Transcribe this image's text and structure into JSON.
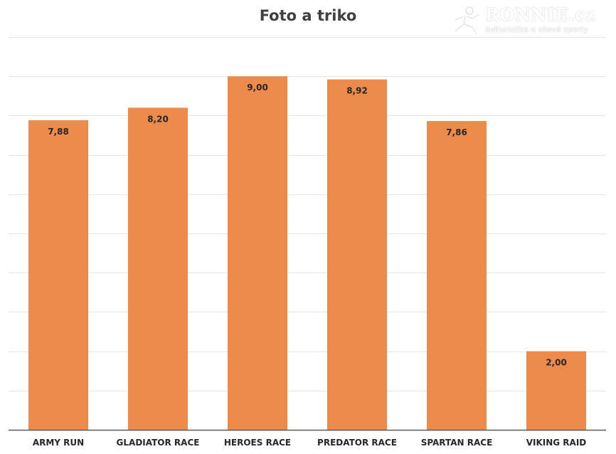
{
  "chart_data": {
    "type": "bar",
    "title": "Foto a triko",
    "categories": [
      "ARMY RUN",
      "GLADIATOR RACE",
      "HEROES RACE",
      "PREDATOR RACE",
      "SPARTAN RACE",
      "VIKING RAID"
    ],
    "values": [
      7.88,
      8.2,
      9.0,
      8.92,
      7.86,
      2.0
    ],
    "data_labels": [
      "7,88",
      "8,20",
      "9,00",
      "8,92",
      "7,86",
      "2,00"
    ],
    "ylim": [
      0,
      10
    ],
    "grid": true,
    "legend": "none",
    "bar_color": "#ED8B4C",
    "grid_color": "#E6E6E6",
    "axis_color": "#595959"
  },
  "watermark": {
    "brand": "RONNIE.cz",
    "tagline": "kulturistika a silové sporty"
  }
}
